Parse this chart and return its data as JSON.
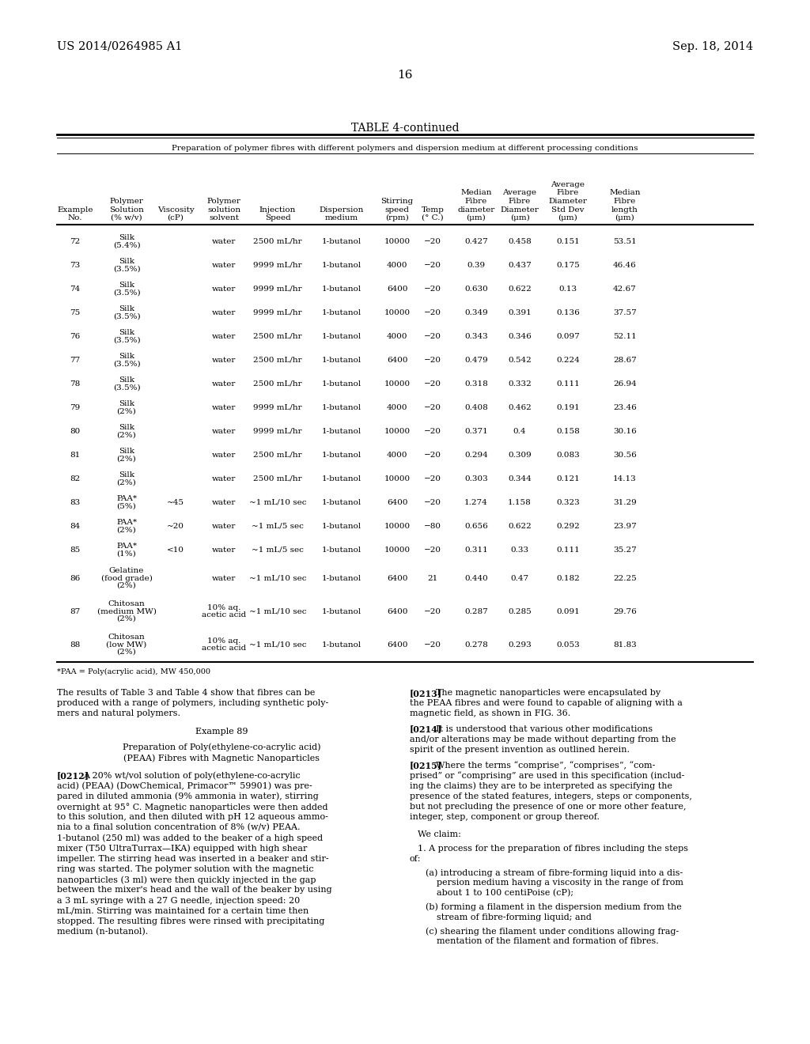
{
  "title_left": "US 2014/0264985 A1",
  "title_right": "Sep. 18, 2014",
  "page_number": "16",
  "table_title": "TABLE 4-continued",
  "table_subtitle": "Preparation of polymer fibres with different polymers and dispersion medium at different processing conditions",
  "rows": [
    [
      "72",
      "Silk\n(5.4%)",
      "",
      "water",
      "2500 mL/hr",
      "1-butanol",
      "10000",
      "−20",
      "0.427",
      "0.458",
      "0.151",
      "53.51"
    ],
    [
      "73",
      "Silk\n(3.5%)",
      "",
      "water",
      "9999 mL/hr",
      "1-butanol",
      "4000",
      "−20",
      "0.39",
      "0.437",
      "0.175",
      "46.46"
    ],
    [
      "74",
      "Silk\n(3.5%)",
      "",
      "water",
      "9999 mL/hr",
      "1-butanol",
      "6400",
      "−20",
      "0.630",
      "0.622",
      "0.13",
      "42.67"
    ],
    [
      "75",
      "Silk\n(3.5%)",
      "",
      "water",
      "9999 mL/hr",
      "1-butanol",
      "10000",
      "−20",
      "0.349",
      "0.391",
      "0.136",
      "37.57"
    ],
    [
      "76",
      "Silk\n(3.5%)",
      "",
      "water",
      "2500 mL/hr",
      "1-butanol",
      "4000",
      "−20",
      "0.343",
      "0.346",
      "0.097",
      "52.11"
    ],
    [
      "77",
      "Silk\n(3.5%)",
      "",
      "water",
      "2500 mL/hr",
      "1-butanol",
      "6400",
      "−20",
      "0.479",
      "0.542",
      "0.224",
      "28.67"
    ],
    [
      "78",
      "Silk\n(3.5%)",
      "",
      "water",
      "2500 mL/hr",
      "1-butanol",
      "10000",
      "−20",
      "0.318",
      "0.332",
      "0.111",
      "26.94"
    ],
    [
      "79",
      "Silk\n(2%)",
      "",
      "water",
      "9999 mL/hr",
      "1-butanol",
      "4000",
      "−20",
      "0.408",
      "0.462",
      "0.191",
      "23.46"
    ],
    [
      "80",
      "Silk\n(2%)",
      "",
      "water",
      "9999 mL/hr",
      "1-butanol",
      "10000",
      "−20",
      "0.371",
      "0.4",
      "0.158",
      "30.16"
    ],
    [
      "81",
      "Silk\n(2%)",
      "",
      "water",
      "2500 mL/hr",
      "1-butanol",
      "4000",
      "−20",
      "0.294",
      "0.309",
      "0.083",
      "30.56"
    ],
    [
      "82",
      "Silk\n(2%)",
      "",
      "water",
      "2500 mL/hr",
      "1-butanol",
      "10000",
      "−20",
      "0.303",
      "0.344",
      "0.121",
      "14.13"
    ],
    [
      "83",
      "PAA*\n(5%)",
      "~45",
      "water",
      "~1 mL/10 sec",
      "1-butanol",
      "6400",
      "−20",
      "1.274",
      "1.158",
      "0.323",
      "31.29"
    ],
    [
      "84",
      "PAA*\n(2%)",
      "~20",
      "water",
      "~1 mL/5 sec",
      "1-butanol",
      "10000",
      "−80",
      "0.656",
      "0.622",
      "0.292",
      "23.97"
    ],
    [
      "85",
      "PAA*\n(1%)",
      "<10",
      "water",
      "~1 mL/5 sec",
      "1-butanol",
      "10000",
      "−20",
      "0.311",
      "0.33",
      "0.111",
      "35.27"
    ],
    [
      "86",
      "Gelatine\n(food grade)\n(2%)",
      "",
      "water",
      "~1 mL/10 sec",
      "1-butanol",
      "6400",
      "21",
      "0.440",
      "0.47",
      "0.182",
      "22.25"
    ],
    [
      "87",
      "Chitosan\n(medium MW)\n(2%)",
      "",
      "10% aq.\nacetic acid",
      "~1 mL/10 sec",
      "1-butanol",
      "6400",
      "−20",
      "0.287",
      "0.285",
      "0.091",
      "29.76"
    ],
    [
      "88",
      "Chitosan\n(low MW)\n(2%)",
      "",
      "10% aq.\nacetic acid",
      "~1 mL/10 sec",
      "1-butanol",
      "6400",
      "−20",
      "0.278",
      "0.293",
      "0.053",
      "81.83"
    ]
  ],
  "footnote": "*PAA = Poly(acrylic acid), MW 450,000",
  "bg_color": "#ffffff"
}
